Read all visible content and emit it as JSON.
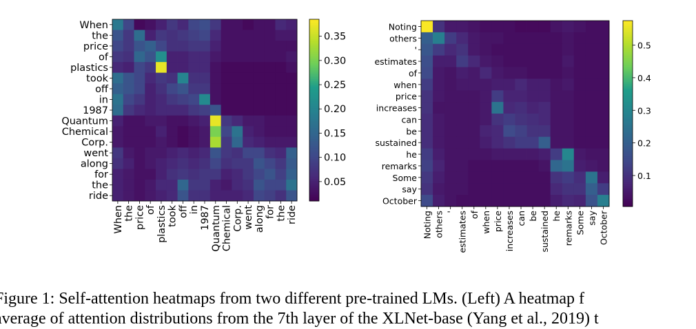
{
  "figure": {
    "caption_lines": [
      "Figure 1: Self-attention heatmaps from two different pre-trained LMs. (Left) A heatmap f",
      "average of attention distributions from the 7th layer of the XLNet-base (Yang et al., 2019) t"
    ]
  },
  "colormap": [
    "#440154",
    "#482777",
    "#3f4a8a",
    "#31678e",
    "#26838f",
    "#1f9d8a",
    "#6cce5a",
    "#b6de2b",
    "#fee825"
  ],
  "chart_data": [
    {
      "type": "heatmap",
      "title": "",
      "tokens": [
        "When",
        "the",
        "price",
        "of",
        "plastics",
        "took",
        "off",
        "in",
        "1987",
        "Quantum",
        "Chemical",
        "Corp.",
        "went",
        "along",
        "for",
        "the",
        "ride"
      ],
      "colorbar": {
        "min": 0.01,
        "max": 0.385,
        "ticks": [
          0.05,
          0.1,
          0.15,
          0.2,
          0.25,
          0.3,
          0.35
        ],
        "tick_labels": [
          "0.05",
          "0.10",
          "0.15",
          "0.20",
          "0.25",
          "0.30",
          "0.35"
        ]
      },
      "values": [
        [
          0.18,
          0.1,
          0.02,
          0.03,
          0.05,
          0.08,
          0.06,
          0.1,
          0.11,
          0.08,
          0.03,
          0.03,
          0.02,
          0.03,
          0.03,
          0.06,
          0.05
        ],
        [
          0.12,
          0.08,
          0.16,
          0.05,
          0.08,
          0.07,
          0.08,
          0.09,
          0.1,
          0.06,
          0.03,
          0.03,
          0.03,
          0.03,
          0.03,
          0.04,
          0.04
        ],
        [
          0.1,
          0.08,
          0.12,
          0.14,
          0.1,
          0.07,
          0.07,
          0.08,
          0.08,
          0.05,
          0.03,
          0.03,
          0.03,
          0.03,
          0.03,
          0.03,
          0.03
        ],
        [
          0.08,
          0.07,
          0.15,
          0.12,
          0.22,
          0.05,
          0.05,
          0.06,
          0.06,
          0.04,
          0.03,
          0.03,
          0.03,
          0.03,
          0.03,
          0.03,
          0.04
        ],
        [
          0.06,
          0.05,
          0.1,
          0.08,
          0.37,
          0.05,
          0.05,
          0.06,
          0.06,
          0.03,
          0.02,
          0.02,
          0.02,
          0.02,
          0.02,
          0.02,
          0.03
        ],
        [
          0.16,
          0.12,
          0.1,
          0.06,
          0.08,
          0.07,
          0.2,
          0.07,
          0.07,
          0.03,
          0.02,
          0.02,
          0.02,
          0.02,
          0.02,
          0.02,
          0.02
        ],
        [
          0.14,
          0.12,
          0.1,
          0.05,
          0.07,
          0.1,
          0.12,
          0.08,
          0.08,
          0.03,
          0.02,
          0.02,
          0.02,
          0.02,
          0.02,
          0.02,
          0.02
        ],
        [
          0.17,
          0.1,
          0.08,
          0.05,
          0.06,
          0.08,
          0.09,
          0.1,
          0.21,
          0.03,
          0.02,
          0.02,
          0.02,
          0.02,
          0.02,
          0.02,
          0.02
        ],
        [
          0.16,
          0.08,
          0.06,
          0.05,
          0.06,
          0.06,
          0.06,
          0.08,
          0.09,
          0.12,
          0.02,
          0.02,
          0.02,
          0.02,
          0.02,
          0.02,
          0.02
        ],
        [
          0.05,
          0.03,
          0.03,
          0.04,
          0.04,
          0.03,
          0.03,
          0.04,
          0.05,
          0.37,
          0.08,
          0.06,
          0.04,
          0.04,
          0.03,
          0.03,
          0.03
        ],
        [
          0.04,
          0.03,
          0.03,
          0.03,
          0.05,
          0.03,
          0.02,
          0.03,
          0.04,
          0.3,
          0.1,
          0.17,
          0.05,
          0.04,
          0.03,
          0.03,
          0.03
        ],
        [
          0.04,
          0.03,
          0.03,
          0.03,
          0.04,
          0.03,
          0.02,
          0.03,
          0.04,
          0.33,
          0.08,
          0.15,
          0.06,
          0.05,
          0.04,
          0.04,
          0.04
        ],
        [
          0.08,
          0.04,
          0.03,
          0.04,
          0.04,
          0.05,
          0.06,
          0.05,
          0.06,
          0.12,
          0.08,
          0.07,
          0.1,
          0.1,
          0.07,
          0.06,
          0.14
        ],
        [
          0.07,
          0.05,
          0.03,
          0.04,
          0.05,
          0.06,
          0.07,
          0.06,
          0.07,
          0.1,
          0.07,
          0.08,
          0.08,
          0.12,
          0.1,
          0.08,
          0.13
        ],
        [
          0.05,
          0.04,
          0.03,
          0.03,
          0.05,
          0.07,
          0.08,
          0.07,
          0.08,
          0.08,
          0.05,
          0.06,
          0.08,
          0.1,
          0.12,
          0.09,
          0.14
        ],
        [
          0.05,
          0.04,
          0.03,
          0.04,
          0.06,
          0.06,
          0.15,
          0.08,
          0.08,
          0.05,
          0.04,
          0.06,
          0.07,
          0.12,
          0.1,
          0.1,
          0.17
        ],
        [
          0.05,
          0.04,
          0.03,
          0.04,
          0.05,
          0.06,
          0.12,
          0.07,
          0.07,
          0.05,
          0.05,
          0.05,
          0.06,
          0.1,
          0.09,
          0.07,
          0.12
        ]
      ]
    },
    {
      "type": "heatmap",
      "title": "",
      "tokens": [
        "Noting",
        "others",
        "'",
        "estimates",
        "of",
        "when",
        "price",
        "increases",
        "can",
        "be",
        "sustained",
        "he",
        "remarks",
        "Some",
        "say",
        "October"
      ],
      "colorbar": {
        "min": 0.005,
        "max": 0.575,
        "ticks": [
          0.1,
          0.2,
          0.3,
          0.4,
          0.5
        ],
        "tick_labels": [
          "0.1",
          "0.2",
          "0.3",
          "0.4",
          "0.5"
        ]
      },
      "values": [
        [
          0.57,
          0.1,
          0.05,
          0.05,
          0.04,
          0.03,
          0.03,
          0.03,
          0.02,
          0.02,
          0.02,
          0.04,
          0.05,
          0.04,
          0.03,
          0.03
        ],
        [
          0.2,
          0.28,
          0.12,
          0.08,
          0.05,
          0.04,
          0.04,
          0.03,
          0.03,
          0.03,
          0.03,
          0.03,
          0.04,
          0.03,
          0.03,
          0.03
        ],
        [
          0.18,
          0.12,
          0.08,
          0.1,
          0.05,
          0.04,
          0.03,
          0.03,
          0.03,
          0.03,
          0.03,
          0.03,
          0.04,
          0.03,
          0.03,
          0.03
        ],
        [
          0.16,
          0.06,
          0.06,
          0.12,
          0.08,
          0.05,
          0.04,
          0.03,
          0.03,
          0.03,
          0.03,
          0.03,
          0.05,
          0.03,
          0.03,
          0.03
        ],
        [
          0.15,
          0.05,
          0.04,
          0.06,
          0.05,
          0.08,
          0.05,
          0.04,
          0.04,
          0.03,
          0.03,
          0.03,
          0.04,
          0.03,
          0.03,
          0.03
        ],
        [
          0.12,
          0.05,
          0.04,
          0.05,
          0.05,
          0.05,
          0.06,
          0.06,
          0.08,
          0.06,
          0.06,
          0.04,
          0.05,
          0.03,
          0.03,
          0.03
        ],
        [
          0.1,
          0.05,
          0.04,
          0.04,
          0.04,
          0.05,
          0.12,
          0.07,
          0.07,
          0.06,
          0.06,
          0.04,
          0.04,
          0.03,
          0.03,
          0.03
        ],
        [
          0.1,
          0.04,
          0.04,
          0.04,
          0.04,
          0.05,
          0.25,
          0.08,
          0.09,
          0.07,
          0.08,
          0.04,
          0.04,
          0.03,
          0.03,
          0.03
        ],
        [
          0.09,
          0.05,
          0.04,
          0.04,
          0.04,
          0.05,
          0.1,
          0.12,
          0.1,
          0.09,
          0.08,
          0.04,
          0.04,
          0.03,
          0.03,
          0.03
        ],
        [
          0.09,
          0.05,
          0.04,
          0.04,
          0.04,
          0.07,
          0.08,
          0.15,
          0.13,
          0.1,
          0.1,
          0.04,
          0.04,
          0.03,
          0.03,
          0.03
        ],
        [
          0.09,
          0.05,
          0.04,
          0.04,
          0.04,
          0.06,
          0.08,
          0.1,
          0.12,
          0.12,
          0.2,
          0.04,
          0.04,
          0.03,
          0.03,
          0.03
        ],
        [
          0.12,
          0.06,
          0.04,
          0.04,
          0.04,
          0.04,
          0.05,
          0.05,
          0.05,
          0.05,
          0.06,
          0.12,
          0.3,
          0.05,
          0.04,
          0.04
        ],
        [
          0.13,
          0.07,
          0.04,
          0.04,
          0.03,
          0.03,
          0.03,
          0.03,
          0.03,
          0.03,
          0.04,
          0.22,
          0.25,
          0.06,
          0.05,
          0.04
        ],
        [
          0.11,
          0.06,
          0.04,
          0.04,
          0.03,
          0.03,
          0.03,
          0.03,
          0.03,
          0.03,
          0.03,
          0.1,
          0.12,
          0.09,
          0.25,
          0.06
        ],
        [
          0.1,
          0.05,
          0.04,
          0.04,
          0.03,
          0.03,
          0.03,
          0.03,
          0.03,
          0.03,
          0.03,
          0.08,
          0.1,
          0.1,
          0.2,
          0.12
        ],
        [
          0.15,
          0.06,
          0.04,
          0.03,
          0.03,
          0.03,
          0.03,
          0.03,
          0.03,
          0.03,
          0.03,
          0.06,
          0.08,
          0.07,
          0.17,
          0.28
        ]
      ]
    }
  ]
}
